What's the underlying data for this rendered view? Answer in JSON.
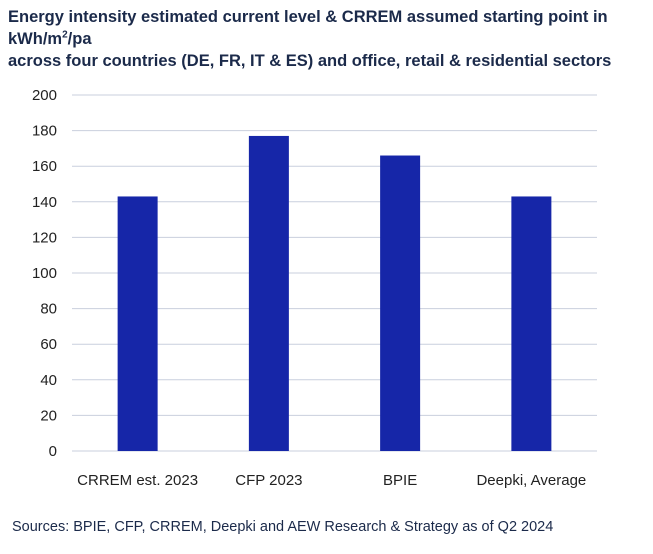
{
  "title": {
    "line1_before": "Energy intensity estimated current level & CRREM assumed starting point in kWh/m",
    "line1_sup": "2",
    "line1_after": "/pa",
    "line2": "across four countries (DE, FR, IT & ES) and office, retail & residential sectors"
  },
  "source": "Sources: BPIE, CFP, CRREM, Deepki and AEW Research & Strategy as of Q2 2024",
  "colors": {
    "bar": "#1626a8",
    "grid": "#c9cfdd",
    "text": "#1b2a4a"
  },
  "chart_data": {
    "type": "bar",
    "categories": [
      "CRREM est. 2023",
      "CFP 2023",
      "BPIE",
      "Deepki, Average"
    ],
    "values": [
      143,
      177,
      166,
      143
    ],
    "ylim": [
      0,
      200
    ],
    "yticks": [
      0,
      20,
      40,
      60,
      80,
      100,
      120,
      140,
      160,
      180,
      200
    ],
    "grid": true,
    "legend": "none",
    "xlabel": "",
    "ylabel": ""
  }
}
